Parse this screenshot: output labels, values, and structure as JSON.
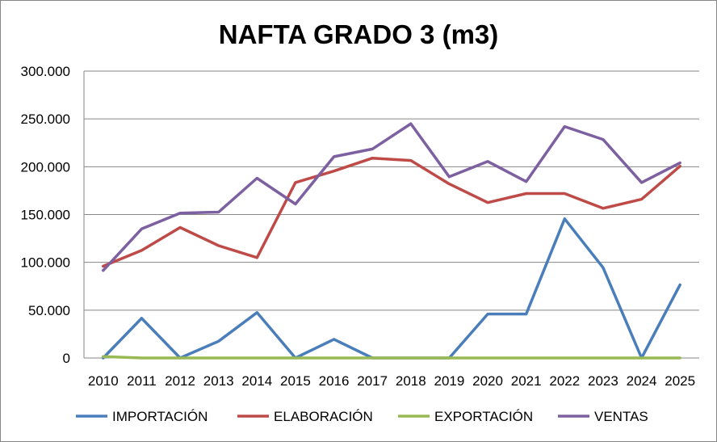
{
  "chart_data": {
    "type": "line",
    "title": "NAFTA GRADO 3 (m3)",
    "xlabel": "",
    "ylabel": "",
    "ylim": [
      0,
      300000
    ],
    "y_ticks": [
      0,
      50000,
      100000,
      150000,
      200000,
      250000,
      300000
    ],
    "y_tick_labels": [
      "0",
      "50.000",
      "100.000",
      "150.000",
      "200.000",
      "250.000",
      "300.000"
    ],
    "grid": true,
    "legend_position": "bottom",
    "categories": [
      "2010",
      "2011",
      "2012",
      "2013",
      "2014",
      "2015",
      "2016",
      "2017",
      "2018",
      "2019",
      "2020",
      "2021",
      "2022",
      "2023",
      "2024",
      "2025"
    ],
    "series": [
      {
        "name": "IMPORTACIÓN",
        "color": "#4a7ebb",
        "values": [
          0,
          41500,
          0,
          17500,
          47500,
          0,
          19500,
          0,
          0,
          0,
          46000,
          46000,
          145500,
          94500,
          0,
          76500
        ]
      },
      {
        "name": "ELABORACIÓN",
        "color": "#be4b48",
        "values": [
          96000,
          112500,
          136500,
          117500,
          105000,
          183500,
          195500,
          209000,
          206500,
          182000,
          162500,
          172000,
          172000,
          156500,
          166000,
          200500
        ]
      },
      {
        "name": "EXPORTACIÓN",
        "color": "#98b954",
        "values": [
          1500,
          0,
          0,
          0,
          0,
          0,
          0,
          0,
          0,
          0,
          0,
          0,
          0,
          0,
          0,
          0
        ]
      },
      {
        "name": "VENTAS",
        "color": "#7d60a0",
        "values": [
          91500,
          135000,
          151500,
          152500,
          188000,
          161000,
          210500,
          218500,
          245000,
          189500,
          205500,
          184500,
          242000,
          228500,
          183500,
          204000
        ]
      }
    ]
  }
}
